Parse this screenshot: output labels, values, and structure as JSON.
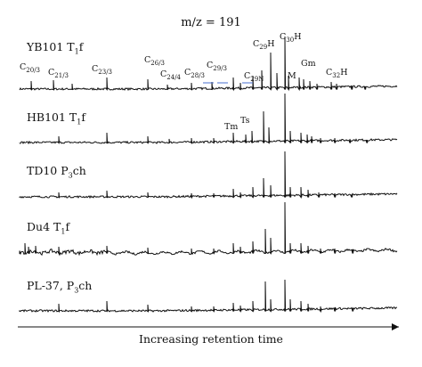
{
  "chart_data": {
    "type": "line",
    "title": "m/z = 191",
    "xlabel": "Increasing retention time",
    "ylabel": "",
    "series": [
      {
        "name": "YB101 T1f",
        "label_main": "YB101 T",
        "label_sub": "1",
        "label_tail": "f"
      },
      {
        "name": "HB101 T1f",
        "label_main": "HB101 T",
        "label_sub": "1",
        "label_tail": "f"
      },
      {
        "name": "TD10 P3ch",
        "label_main": "TD10 P",
        "label_sub": "3",
        "label_tail": "ch"
      },
      {
        "name": "Du4 T1f",
        "label_main": "Du4 T",
        "label_sub": "1",
        "label_tail": "f"
      },
      {
        "name": "PL-37, P3ch",
        "label_main": "PL-37, P",
        "label_sub": "3",
        "label_tail": "ch"
      }
    ],
    "peak_labels": [
      {
        "main": "C",
        "sub": "20/3"
      },
      {
        "main": "C",
        "sub": "21/3"
      },
      {
        "main": "C",
        "sub": "23/3"
      },
      {
        "main": "C",
        "sub": "26/3"
      },
      {
        "main": "C",
        "sub": "24/4"
      },
      {
        "main": "C",
        "sub": "28/3"
      },
      {
        "main": "C",
        "sub": "29/3"
      },
      {
        "main": "C",
        "sub": "29N"
      },
      {
        "main": "C",
        "sub": "29",
        "tail": "H"
      },
      {
        "main": "C",
        "sub": "30",
        "tail": "H"
      },
      {
        "main": "M"
      },
      {
        "main": "Gm"
      },
      {
        "main": "C",
        "sub": "32",
        "tail": "H"
      },
      {
        "main": "Tm"
      },
      {
        "main": "Ts"
      }
    ]
  }
}
